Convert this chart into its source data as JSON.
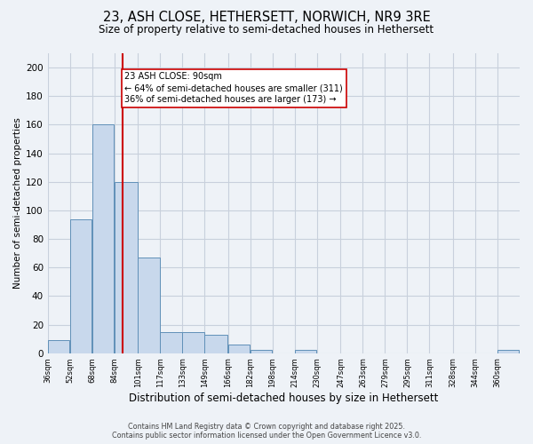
{
  "title1": "23, ASH CLOSE, HETHERSETT, NORWICH, NR9 3RE",
  "title2": "Size of property relative to semi-detached houses in Hethersett",
  "xlabel": "Distribution of semi-detached houses by size in Hethersett",
  "ylabel": "Number of semi-detached properties",
  "bins": [
    36,
    52,
    68,
    84,
    101,
    117,
    133,
    149,
    166,
    182,
    198,
    214,
    230,
    247,
    263,
    279,
    295,
    311,
    328,
    344,
    360
  ],
  "values": [
    9,
    94,
    160,
    120,
    67,
    15,
    15,
    13,
    6,
    2,
    0,
    2,
    0,
    0,
    0,
    0,
    0,
    0,
    0,
    0,
    2
  ],
  "bar_color": "#c8d8ec",
  "bar_edge_color": "#6090b8",
  "grid_color": "#c8d0dc",
  "property_size": 90,
  "red_line_color": "#cc0000",
  "annotation_text": "23 ASH CLOSE: 90sqm\n← 64% of semi-detached houses are smaller (311)\n36% of semi-detached houses are larger (173) →",
  "annotation_box_color": "#ffffff",
  "annotation_box_edge": "#cc0000",
  "footer1": "Contains HM Land Registry data © Crown copyright and database right 2025.",
  "footer2": "Contains public sector information licensed under the Open Government Licence v3.0.",
  "ylim": [
    0,
    210
  ],
  "yticks": [
    0,
    20,
    40,
    60,
    80,
    100,
    120,
    140,
    160,
    180,
    200
  ],
  "bg_color": "#eef2f7",
  "title1_fontsize": 10.5,
  "title2_fontsize": 8.5,
  "xlabel_fontsize": 8.5,
  "ylabel_fontsize": 7.5,
  "xtick_fontsize": 6.0,
  "ytick_fontsize": 7.5,
  "footer_fontsize": 5.8
}
